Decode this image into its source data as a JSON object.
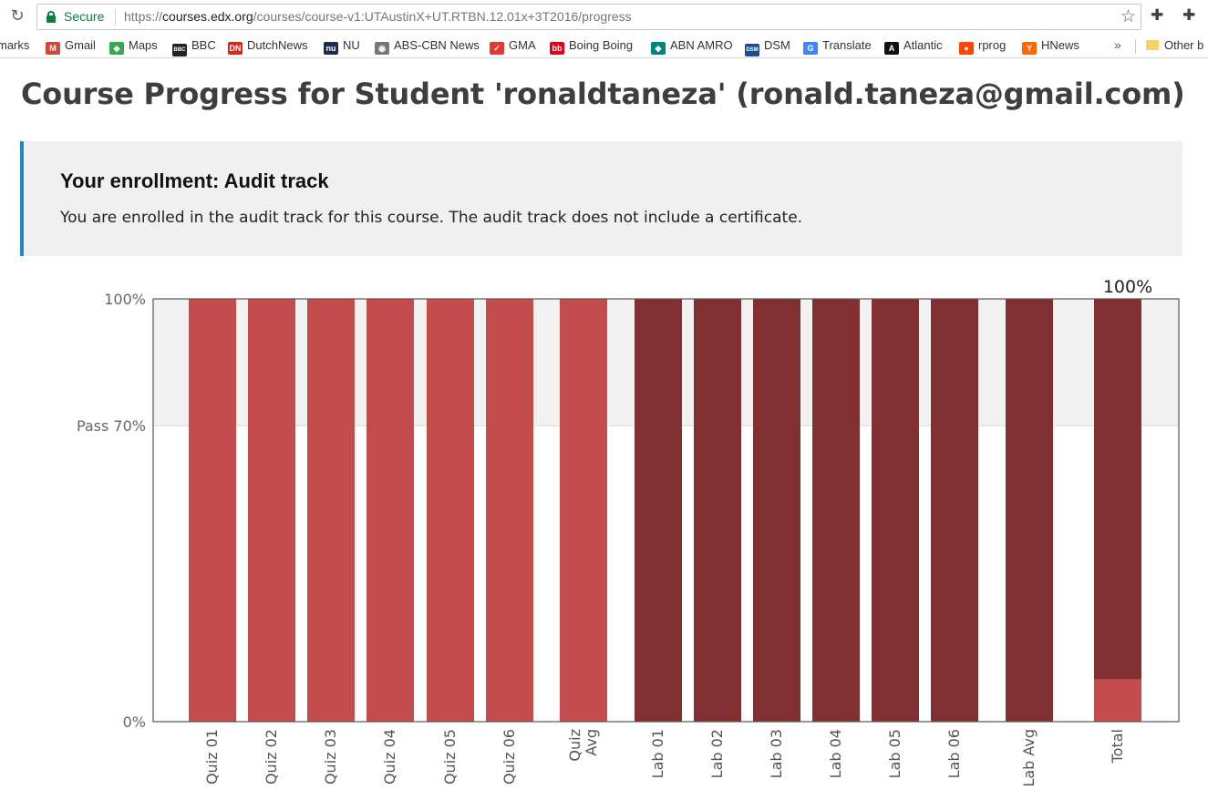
{
  "browser": {
    "secure_label": "Secure",
    "url_scheme": "https://",
    "url_host": "courses.edx.org",
    "url_path": "/courses/course-v1:UTAustinX+UT.RTBN.12.01x+3T2016/progress",
    "bookmarks": [
      {
        "label": "marks",
        "icon": "",
        "color": ""
      },
      {
        "label": "Gmail",
        "icon": "M",
        "color": "#d44638"
      },
      {
        "label": "Maps",
        "icon": "◆",
        "color": "#34a853"
      },
      {
        "label": "BBC",
        "icon": "BBC",
        "color": "#222222"
      },
      {
        "label": "DutchNews",
        "icon": "DN",
        "color": "#d52b1e"
      },
      {
        "label": "NU",
        "icon": "nu",
        "color": "#1c2a58"
      },
      {
        "label": "ABS-CBN News",
        "icon": "◉",
        "color": "#777777"
      },
      {
        "label": "GMA",
        "icon": "✓",
        "color": "#e53935"
      },
      {
        "label": "Boing Boing",
        "icon": "bb",
        "color": "#e8001b"
      },
      {
        "label": "ABN AMRO",
        "icon": "◆",
        "color": "#00857c"
      },
      {
        "label": "DSM",
        "icon": "DSM",
        "color": "#1f4e8c"
      },
      {
        "label": "Translate",
        "icon": "G",
        "color": "#4285f4"
      },
      {
        "label": "Atlantic",
        "icon": "A",
        "color": "#111111"
      },
      {
        "label": "rprog",
        "icon": "●",
        "color": "#ff4500"
      },
      {
        "label": "HNews",
        "icon": "Y",
        "color": "#ff6600"
      }
    ],
    "overflow_label": "»",
    "other_bookmarks": "Other b"
  },
  "page": {
    "title": "Course Progress for Student 'ronaldtaneza' (ronald.taneza@gmail.com)",
    "enrollment_heading": "Your enrollment: Audit track",
    "enrollment_text": "You are enrolled in the audit track for this course. The audit track does not include a certificate."
  },
  "colors": {
    "quiz": "#c44c4c",
    "lab": "#822f32",
    "pass_band": "#f2f2f2",
    "accent": "#1e88c9"
  },
  "chart_data": {
    "type": "bar",
    "categories": [
      "Quiz 01",
      "Quiz 02",
      "Quiz 03",
      "Quiz 04",
      "Quiz 05",
      "Quiz 06",
      "Quiz Avg",
      "Lab 01",
      "Lab 02",
      "Lab 03",
      "Lab 04",
      "Lab 05",
      "Lab 06",
      "Lab Avg",
      "Total"
    ],
    "category_groups": [
      "quiz",
      "quiz",
      "quiz",
      "quiz",
      "quiz",
      "quiz",
      "quiz",
      "lab",
      "lab",
      "lab",
      "lab",
      "lab",
      "lab",
      "lab",
      "total"
    ],
    "values": [
      100,
      100,
      100,
      100,
      100,
      100,
      100,
      100,
      100,
      100,
      100,
      100,
      100,
      100,
      100
    ],
    "total_breakdown": [
      {
        "name": "quiz",
        "value": 10
      },
      {
        "name": "lab",
        "value": 90
      }
    ],
    "total_label": "100%",
    "y_ticks": [
      {
        "value": 100,
        "label": "100%"
      },
      {
        "value": 70,
        "label": "Pass 70%"
      },
      {
        "value": 0,
        "label": "0%"
      }
    ],
    "ylim": [
      0,
      100
    ],
    "pass_threshold": 70
  }
}
